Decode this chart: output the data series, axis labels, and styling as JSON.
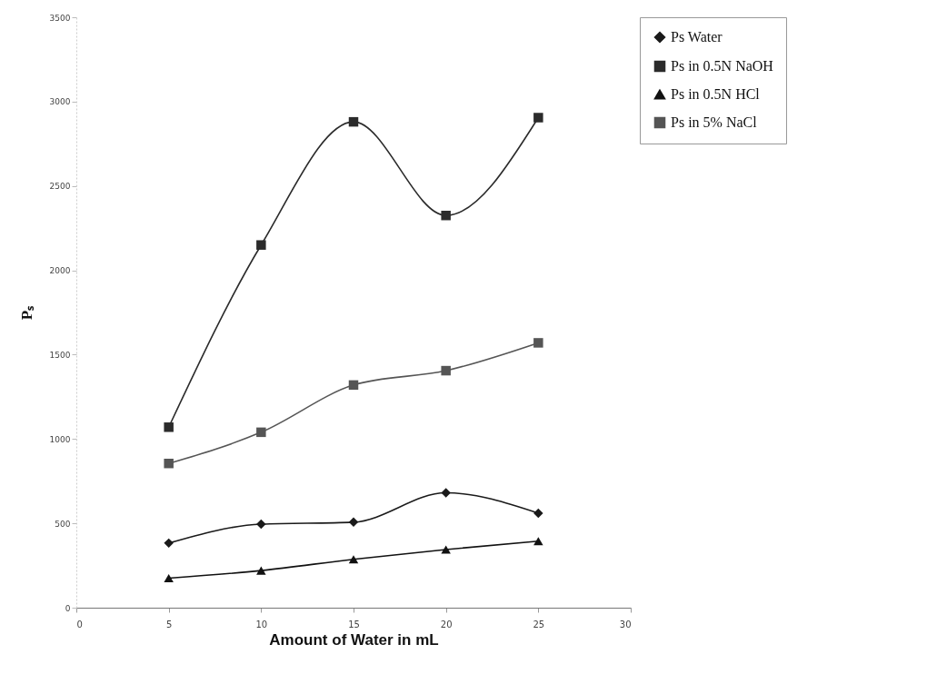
{
  "chart_data": {
    "type": "line",
    "xlabel": "Amount of Water in mL",
    "ylabel": "Pₛ",
    "x": [
      5,
      10,
      15,
      20,
      25
    ],
    "series": [
      {
        "name": "Ps Water",
        "color": "#1a1a1a",
        "marker": "diamond",
        "values": [
          383,
          495,
          507,
          681,
          560
        ]
      },
      {
        "name": "Ps in 0.5N NaOH",
        "color": "#2b2b2b",
        "marker": "square",
        "values": [
          1070,
          2150,
          2880,
          2325,
          2905
        ]
      },
      {
        "name": "Ps in 0.5N HCl",
        "color": "#111111",
        "marker": "triangle",
        "values": [
          175,
          220,
          287,
          345,
          394
        ]
      },
      {
        "name": "Ps in 5% NaCl",
        "color": "#555555",
        "marker": "square",
        "values": [
          855,
          1040,
          1320,
          1405,
          1570
        ]
      }
    ],
    "xlim": [
      0,
      30
    ],
    "xticks": [
      0,
      5,
      10,
      15,
      20,
      25,
      30
    ],
    "ylim": [
      0,
      3500
    ],
    "yticks": [
      0,
      500,
      1000,
      1500,
      2000,
      2500,
      3000,
      3500
    ],
    "legend": "right",
    "line_style": "solid"
  }
}
